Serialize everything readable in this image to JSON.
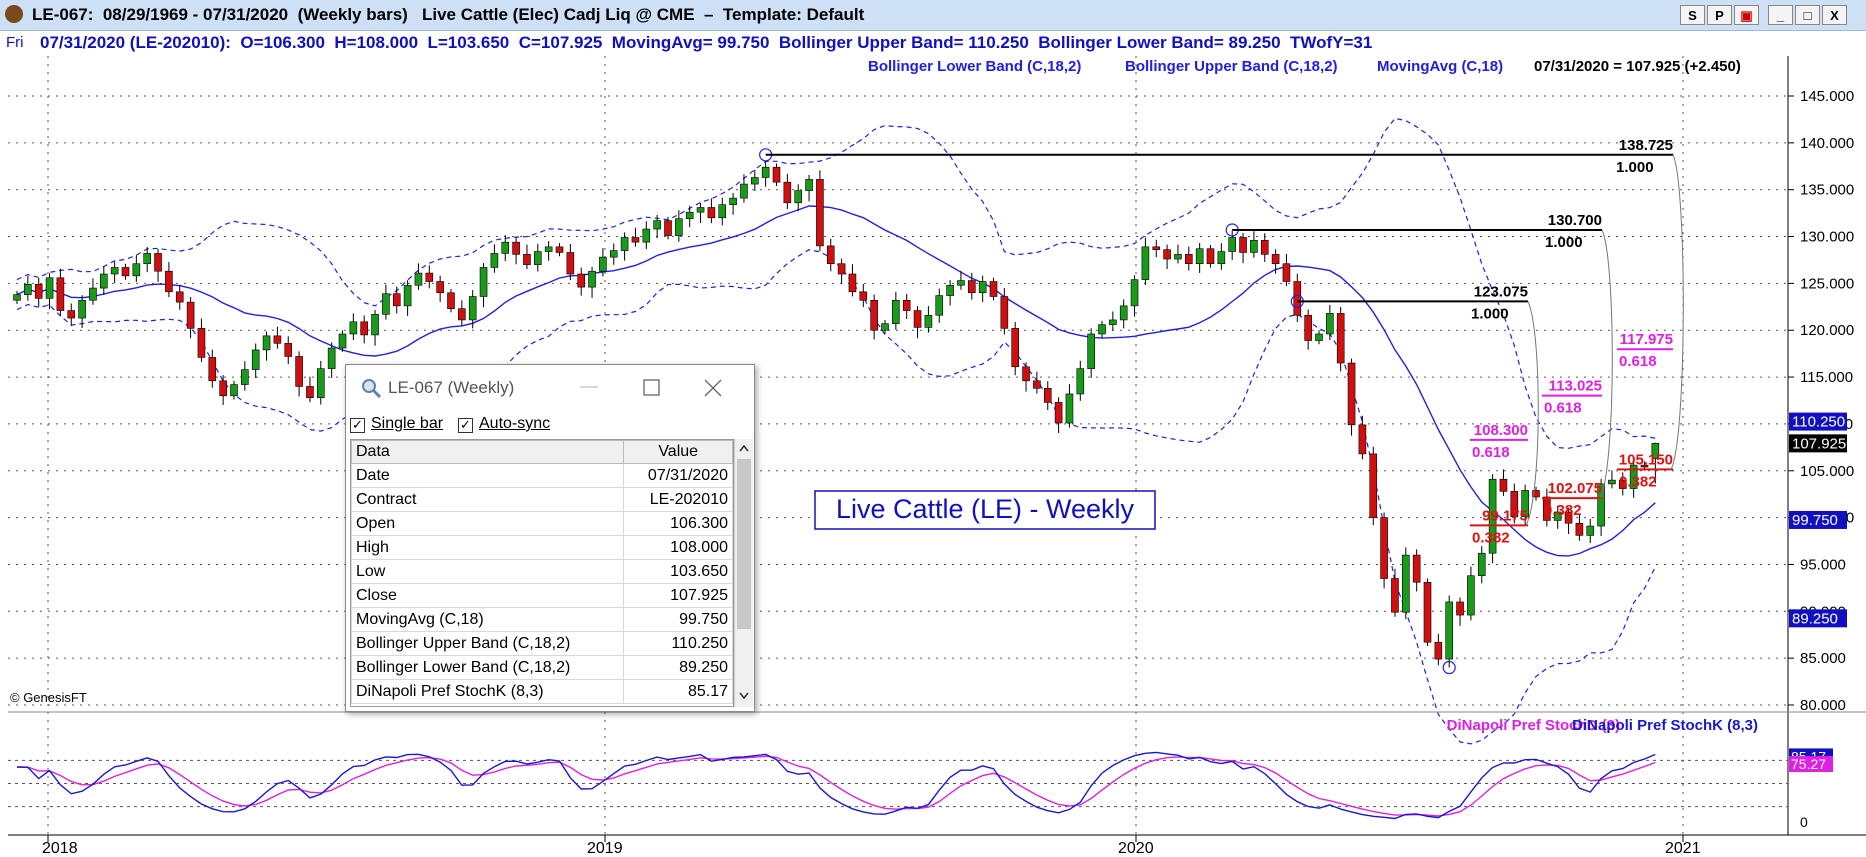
{
  "window": {
    "title": "LE-067:  08/29/1969 - 07/31/2020  (Weekly bars)   Live Cattle (Elec) Cadj Liq @ CME  –  Template: Default",
    "buttons": [
      "S",
      "P",
      "▣",
      "_",
      "□",
      "X"
    ]
  },
  "infobar": {
    "day": "Fri",
    "text": "07/31/2020 (LE-202010):  O=106.300  H=108.000  L=103.650  C=107.925  MovingAvg= 99.750  Bollinger Upper Band= 110.250  Bollinger Lower Band= 89.250  TWofY=31"
  },
  "legend": {
    "lower": "Bollinger Lower Band (C,18,2)",
    "upper": "Bollinger Upper Band (C,18,2)",
    "ma": "MovingAvg (C,18)",
    "last": "07/31/2020 = 107.925 (+2.450)"
  },
  "copyright": "© GenesisFT",
  "chart_label": "Live Cattle (LE) - Weekly",
  "colors": {
    "up": "#1a9a1a",
    "down": "#d01010",
    "band": "#2020e0",
    "stochK": "#1818d0",
    "stochD": "#e020e0",
    "fibBlack": "#000000",
    "fibMagenta": "#e020e0",
    "fibRed": "#e01010"
  },
  "chart_data": {
    "type": "candlestick",
    "x_tick_labels": [
      "2018",
      "2019",
      "2020",
      "2021"
    ],
    "y_ticks": [
      "145.000",
      "140.000",
      "135.000",
      "130.000",
      "125.000",
      "120.000",
      "115.000",
      "110.000",
      "105.000",
      "100.000",
      "95.000",
      "90.000",
      "85.000",
      "80.000"
    ],
    "ylim": [
      78,
      148
    ],
    "value_tags": [
      {
        "label": "110.250",
        "value": 110.25,
        "bg": "#1010c0",
        "fg": "#ffffff"
      },
      {
        "label": "107.925",
        "value": 107.925,
        "bg": "#000000",
        "fg": "#ffffff"
      },
      {
        "label": "99.750",
        "value": 99.75,
        "bg": "#1010c0",
        "fg": "#ffffff"
      },
      {
        "label": "89.250",
        "value": 89.25,
        "bg": "#1010c0",
        "fg": "#ffffff"
      }
    ],
    "fib_levels": [
      {
        "price": "138.725",
        "ratio": "1.000",
        "value": 138.725,
        "color": "#000000"
      },
      {
        "price": "130.700",
        "ratio": "1.000",
        "value": 130.7,
        "color": "#000000"
      },
      {
        "price": "123.075",
        "ratio": "1.000",
        "value": 123.075,
        "color": "#000000"
      },
      {
        "price": "117.975",
        "ratio": "0.618",
        "value": 117.975,
        "color": "#e020e0"
      },
      {
        "price": "113.025",
        "ratio": "0.618",
        "value": 113.025,
        "color": "#e020e0"
      },
      {
        "price": "108.300",
        "ratio": "0.618",
        "value": 108.3,
        "color": "#e020e0"
      },
      {
        "price": "105.150",
        "ratio": "0.382",
        "value": 105.15,
        "color": "#e01010"
      },
      {
        "price": "102.075",
        "ratio": "0.382",
        "value": 102.075,
        "color": "#e01010"
      },
      {
        "price": "99.175",
        "ratio": "0.382",
        "value": 99.175,
        "color": "#e01010"
      }
    ],
    "close": [
      123.8,
      124.9,
      123.4,
      125.6,
      122.1,
      121.3,
      123.2,
      124.5,
      126.0,
      126.7,
      125.8,
      127.1,
      128.2,
      126.3,
      124.1,
      123.0,
      120.2,
      117.1,
      114.6,
      113.0,
      114.2,
      115.8,
      117.9,
      119.4,
      118.6,
      117.2,
      114.0,
      112.8,
      115.9,
      118.1,
      119.6,
      120.9,
      119.5,
      121.7,
      123.9,
      122.6,
      124.8,
      126.1,
      125.2,
      124.0,
      122.3,
      121.1,
      123.6,
      126.7,
      128.2,
      129.4,
      128.1,
      127.0,
      128.4,
      128.9,
      128.3,
      126.0,
      124.6,
      126.3,
      127.8,
      128.5,
      129.9,
      129.4,
      130.8,
      131.7,
      130.1,
      131.9,
      132.6,
      133.1,
      132.0,
      133.4,
      134.1,
      135.6,
      136.3,
      137.4,
      135.8,
      133.6,
      134.9,
      136.1,
      129.0,
      127.1,
      126.0,
      124.1,
      123.2,
      120.0,
      120.7,
      123.2,
      122.1,
      120.3,
      121.6,
      123.7,
      124.8,
      125.3,
      124.0,
      125.2,
      123.6,
      120.2,
      116.1,
      114.6,
      113.8,
      112.3,
      110.1,
      113.2,
      115.9,
      119.6,
      120.6,
      121.1,
      122.6,
      125.4,
      128.9,
      128.6,
      127.6,
      128.1,
      127.1,
      128.7,
      127.1,
      128.4,
      129.9,
      128.3,
      129.6,
      128.1,
      127.1,
      125.2,
      121.6,
      118.9,
      119.6,
      121.8,
      116.5,
      109.9,
      106.8,
      100.0,
      93.5,
      89.9,
      96.0,
      93.1,
      86.7,
      84.9,
      91.0,
      89.6,
      93.8,
      96.2,
      104.1,
      102.8,
      100.1,
      102.9,
      102.2,
      99.7,
      100.6,
      99.4,
      98.1,
      99.1,
      103.6,
      104.0,
      103.1,
      105.6,
      105.4,
      107.925
    ],
    "stoch_labels": {
      "d": "DiNapoli Pref StochD (3)",
      "k": "DiNapoli Pref StochK (8,3)"
    },
    "stoch_tags": [
      {
        "label": "85.17",
        "value": 85.17,
        "bg": "#1010c0",
        "fg": "#ffffff"
      },
      {
        "label": "75.27",
        "value": 75.27,
        "bg": "#e020e0",
        "fg": "#ffffff"
      }
    ],
    "stoch_tick": "0"
  },
  "dialog": {
    "title": "LE-067 (Weekly)",
    "single_bar": "Single bar",
    "auto_sync": "Auto-sync",
    "col_data": "Data",
    "col_value": "Value",
    "rows": [
      {
        "label": "Date",
        "value": "07/31/2020"
      },
      {
        "label": "Contract",
        "value": "LE-202010"
      },
      {
        "label": "Open",
        "value": "106.300"
      },
      {
        "label": "High",
        "value": "108.000"
      },
      {
        "label": "Low",
        "value": "103.650"
      },
      {
        "label": "Close",
        "value": "107.925"
      },
      {
        "label": "MovingAvg (C,18)",
        "value": "99.750"
      },
      {
        "label": "Bollinger Upper Band (C,18,2)",
        "value": "110.250"
      },
      {
        "label": "Bollinger Lower Band (C,18,2)",
        "value": "89.250"
      },
      {
        "label": "DiNapoli Pref StochK (8,3)",
        "value": "85.17"
      }
    ]
  }
}
